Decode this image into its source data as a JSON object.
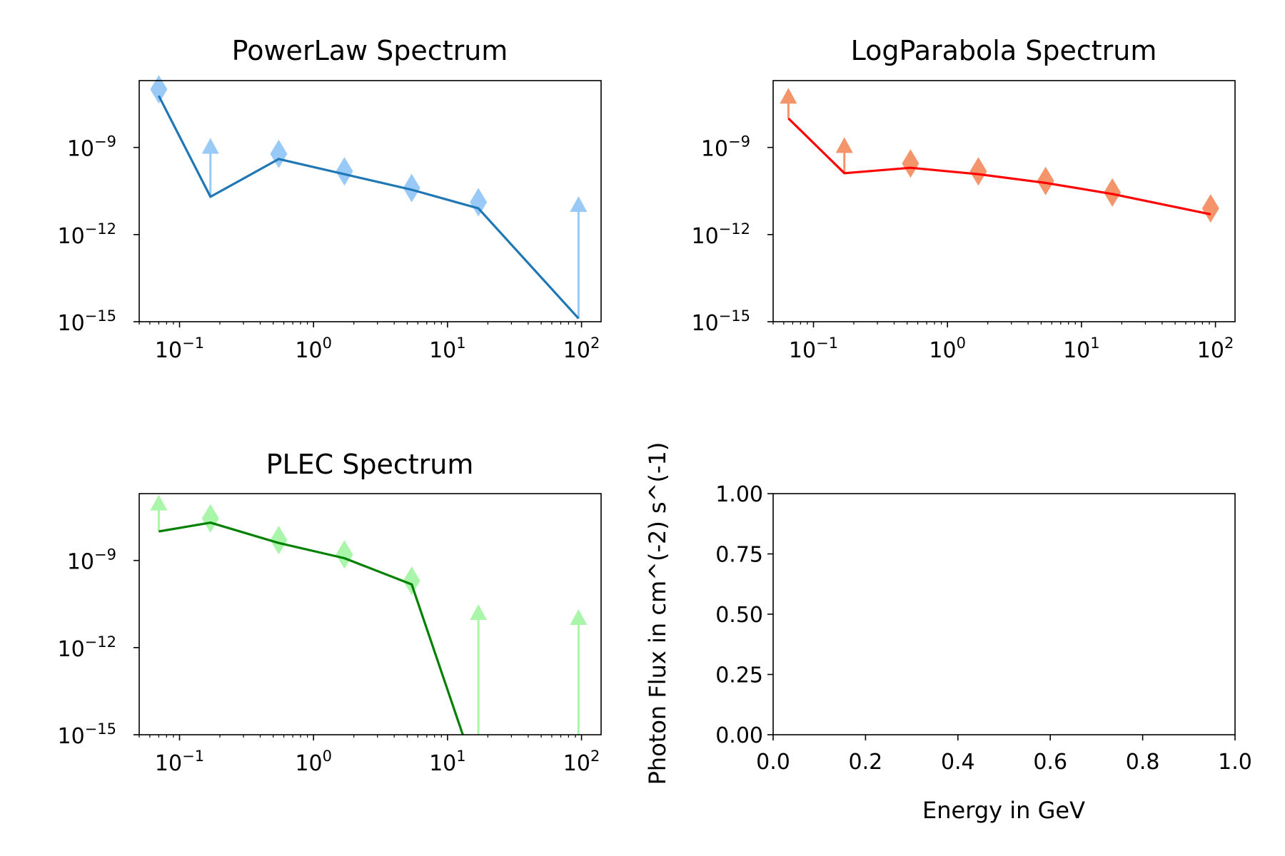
{
  "chart_data": [
    {
      "panel": "top-left",
      "type": "line",
      "title": "PowerLaw Spectrum",
      "xscale": "log",
      "yscale": "log",
      "xlim": [
        0.05,
        140
      ],
      "ylim": [
        1e-15,
        2e-07
      ],
      "xticks": [
        {
          "base": "10",
          "exp": "−1"
        },
        {
          "base": "10",
          "exp": "0"
        },
        {
          "base": "10",
          "exp": "1"
        },
        {
          "base": "10",
          "exp": "2"
        }
      ],
      "yticks": [
        {
          "base": "10",
          "exp": "−9"
        },
        {
          "base": "10",
          "exp": "−12"
        },
        {
          "base": "10",
          "exp": "−15"
        }
      ],
      "model": {
        "color": "#1f77b4",
        "x": [
          0.07,
          0.17,
          0.55,
          1.7,
          5.4,
          17,
          95
        ],
        "y": [
          6e-08,
          2e-11,
          4e-10,
          1.2e-10,
          3.5e-11,
          8e-12,
          1.3e-15
        ]
      },
      "points": {
        "color": "#99c9f7",
        "x": [
          0.07,
          0.55,
          1.7,
          5.4,
          17
        ],
        "y": [
          1e-07,
          6e-10,
          1.5e-10,
          4e-11,
          1.3e-11
        ]
      },
      "upper_limits": {
        "color": "#99c9f7",
        "x": [
          0.17,
          95
        ],
        "y_low": [
          2e-11,
          1.3e-15
        ],
        "y_high": [
          1.5e-09,
          1.5e-11
        ]
      }
    },
    {
      "panel": "top-right",
      "type": "line",
      "title": "LogParabola Spectrum",
      "xscale": "log",
      "yscale": "log",
      "xlim": [
        0.05,
        140
      ],
      "ylim": [
        1e-15,
        2e-07
      ],
      "xticks": [
        {
          "base": "10",
          "exp": "−1"
        },
        {
          "base": "10",
          "exp": "0"
        },
        {
          "base": "10",
          "exp": "1"
        },
        {
          "base": "10",
          "exp": "2"
        }
      ],
      "yticks": [
        {
          "base": "10",
          "exp": "−9"
        },
        {
          "base": "10",
          "exp": "−12"
        },
        {
          "base": "10",
          "exp": "−15"
        }
      ],
      "model": {
        "color": "#ff0000",
        "x": [
          0.065,
          0.17,
          0.53,
          1.7,
          5.4,
          17,
          92
        ],
        "y": [
          1e-08,
          1.3e-10,
          2e-10,
          1.2e-10,
          6e-11,
          2.5e-11,
          5e-12
        ]
      },
      "points": {
        "color": "#f4946b",
        "x": [
          0.53,
          1.7,
          5.4,
          17,
          92
        ],
        "y": [
          2.8e-10,
          1.5e-10,
          7e-11,
          2.8e-11,
          8e-12
        ]
      },
      "upper_limits": {
        "color": "#f4946b",
        "x": [
          0.065,
          0.17
        ],
        "y_low": [
          1e-08,
          1.3e-10
        ],
        "y_high": [
          8e-08,
          1.6e-09
        ]
      }
    },
    {
      "panel": "bottom-left",
      "type": "line",
      "title": "PLEC Spectrum",
      "xscale": "log",
      "yscale": "log",
      "xlim": [
        0.05,
        140
      ],
      "ylim": [
        1e-15,
        2e-07
      ],
      "xticks": [
        {
          "base": "10",
          "exp": "−1"
        },
        {
          "base": "10",
          "exp": "0"
        },
        {
          "base": "10",
          "exp": "1"
        },
        {
          "base": "10",
          "exp": "2"
        }
      ],
      "yticks": [
        {
          "base": "10",
          "exp": "−9"
        },
        {
          "base": "10",
          "exp": "−12"
        },
        {
          "base": "10",
          "exp": "−15"
        }
      ],
      "model": {
        "color": "#008000",
        "x": [
          0.07,
          0.17,
          0.55,
          1.7,
          5.4,
          13
        ],
        "y": [
          1e-08,
          2e-08,
          4e-09,
          1.2e-09,
          1.5e-10,
          1e-15
        ]
      },
      "points": {
        "color": "#a9f5a9",
        "x": [
          0.17,
          0.55,
          1.7,
          5.4
        ],
        "y": [
          2.8e-08,
          5e-09,
          1.6e-09,
          2e-10
        ]
      },
      "upper_limits": {
        "color": "#a9f5a9",
        "x": [
          0.07,
          17,
          95
        ],
        "y_low": [
          1e-08,
          1e-15,
          1e-15
        ],
        "y_high": [
          1.3e-07,
          2.2e-11,
          1.5e-11
        ]
      }
    },
    {
      "panel": "bottom-right",
      "type": "line",
      "title": "",
      "xlabel": "Energy in GeV",
      "ylabel": "Photon Flux in cm^(-2) s^(-1)",
      "xlim": [
        0,
        1
      ],
      "ylim": [
        0,
        1
      ],
      "xticks": [
        "0.0",
        "0.2",
        "0.4",
        "0.6",
        "0.8",
        "1.0"
      ],
      "yticks": [
        "0.00",
        "0.25",
        "0.50",
        "0.75",
        "1.00"
      ],
      "series": []
    }
  ]
}
